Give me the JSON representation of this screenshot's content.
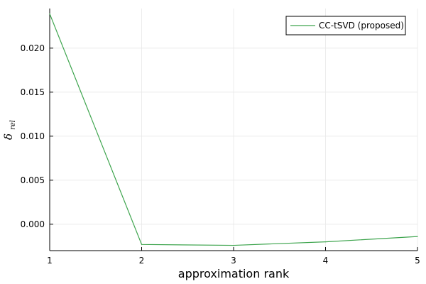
{
  "chart_data": {
    "type": "line",
    "title": "",
    "xlabel": "approximation rank",
    "ylabel": {
      "main": "δ",
      "subscript": "rel"
    },
    "x": [
      1,
      2,
      3,
      4,
      5
    ],
    "xlim": [
      1,
      5
    ],
    "ylim": [
      -0.003,
      0.0245
    ],
    "xticks": [
      1,
      2,
      3,
      4,
      5
    ],
    "xtick_labels": [
      "1",
      "2",
      "3",
      "4",
      "5"
    ],
    "yticks": [
      0.0,
      0.005,
      0.01,
      0.015,
      0.02
    ],
    "ytick_labels": [
      "0.000",
      "0.005",
      "0.010",
      "0.015",
      "0.020"
    ],
    "grid": true,
    "legend": {
      "position": "top-right"
    },
    "series": [
      {
        "name": "CC-tSVD (proposed)",
        "color": "#3da44d",
        "values": [
          0.0239,
          -0.0023,
          -0.0024,
          -0.002,
          -0.0014
        ]
      }
    ]
  }
}
